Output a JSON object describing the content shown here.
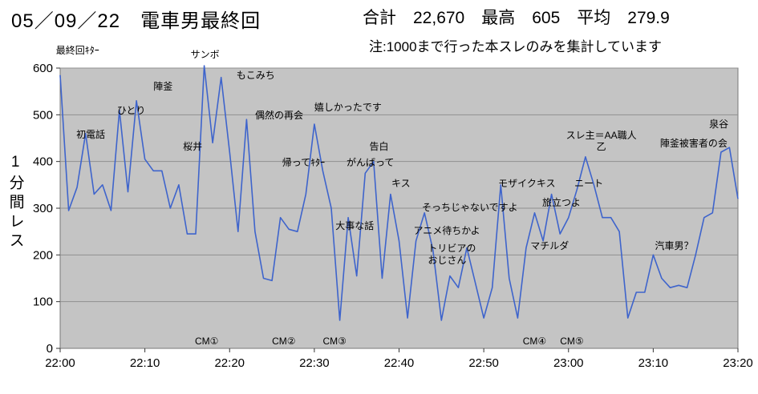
{
  "header": {
    "stats": "合計　22,670　最高　605　平均　279.9",
    "note": "注:1000まで行った本スレのみを集計しています"
  },
  "chart_data": {
    "type": "line",
    "title": "05／09／22　電車男最終回",
    "xlabel": "",
    "ylabel": "1分間レス",
    "x_unit": "minutes since 22:00, one point per minute",
    "x_tick_labels": [
      "22:00",
      "22:10",
      "22:20",
      "22:30",
      "22:40",
      "22:50",
      "23:00",
      "23:10",
      "23:20"
    ],
    "x_tick_minutes": [
      0,
      10,
      20,
      30,
      40,
      50,
      60,
      70,
      80
    ],
    "y_ticks": [
      0,
      100,
      200,
      300,
      400,
      500,
      600
    ],
    "ylim": [
      0,
      600
    ],
    "grid": true,
    "legend": false,
    "line_color": "#3e64cc",
    "plot_bg_color": "#c4c4c4",
    "grid_color": "#8f8f8f",
    "summary": {
      "total": "22,670",
      "max": "605",
      "average": "279.9"
    },
    "values": [
      585,
      295,
      345,
      460,
      330,
      350,
      295,
      510,
      335,
      530,
      405,
      380,
      380,
      300,
      350,
      245,
      245,
      605,
      440,
      580,
      420,
      250,
      490,
      250,
      150,
      145,
      280,
      255,
      250,
      330,
      480,
      380,
      300,
      60,
      280,
      155,
      375,
      400,
      150,
      330,
      230,
      65,
      230,
      290,
      210,
      60,
      155,
      130,
      215,
      140,
      65,
      130,
      350,
      150,
      65,
      215,
      290,
      230,
      330,
      245,
      280,
      340,
      410,
      350,
      280,
      280,
      250,
      65,
      120,
      120,
      200,
      150,
      130,
      135,
      130,
      200,
      280,
      290,
      420,
      430,
      320
    ],
    "annotations": [
      {
        "text": "最終回ｷﾀｰ",
        "min": -0.5,
        "val": 650
      },
      {
        "text": "初電話",
        "min": 1.9,
        "val": 470
      },
      {
        "text": "ひとり",
        "min": 6.7,
        "val": 521
      },
      {
        "text": "陣釜",
        "min": 11.0,
        "val": 573
      },
      {
        "text": "桜井",
        "min": 14.5,
        "val": 444
      },
      {
        "text": "サンボ",
        "min": 15.4,
        "val": 641
      },
      {
        "text": "もこみち",
        "min": 20.8,
        "val": 597
      },
      {
        "text": "偶然の再会",
        "min": 23.0,
        "val": 511
      },
      {
        "text": "帰ってｷﾀｰ",
        "min": 26.2,
        "val": 410
      },
      {
        "text": "嬉しかったです",
        "min": 30.0,
        "val": 528
      },
      {
        "text": "大事な話",
        "min": 32.5,
        "val": 274
      },
      {
        "text": "がんばって",
        "min": 33.8,
        "val": 410
      },
      {
        "text": "告白",
        "min": 36.5,
        "val": 444
      },
      {
        "text": "キス",
        "min": 39.1,
        "val": 365
      },
      {
        "text": "アニメ待ちかよ",
        "min": 41.7,
        "val": 264
      },
      {
        "text": "そっちじゃないですよ",
        "min": 42.7,
        "val": 314
      },
      {
        "text": "トリビアの\nおじさん",
        "min": 43.4,
        "val": 226
      },
      {
        "text": "モザイクキス",
        "min": 51.7,
        "val": 365
      },
      {
        "text": "マチルダ",
        "min": 55.5,
        "val": 231
      },
      {
        "text": "旅立つよ",
        "min": 56.9,
        "val": 324
      },
      {
        "text": "ニート",
        "min": 60.7,
        "val": 365
      },
      {
        "text": "スレ主＝AA職人\n乙",
        "min": 59.7,
        "val": 468,
        "align": "center"
      },
      {
        "text": "陣釜被害者の会",
        "min": 70.8,
        "val": 451
      },
      {
        "text": "汽車男？",
        "min": 70.2,
        "val": 231
      },
      {
        "text": "泉谷",
        "min": 76.6,
        "val": 492
      },
      {
        "text": "CM①",
        "min": 15.9,
        "val": 27
      },
      {
        "text": "CM②",
        "min": 25.0,
        "val": 27
      },
      {
        "text": "CM③",
        "min": 31.0,
        "val": 27
      },
      {
        "text": "CM④",
        "min": 54.6,
        "val": 27
      },
      {
        "text": "CM⑤",
        "min": 59.0,
        "val": 27
      }
    ]
  }
}
